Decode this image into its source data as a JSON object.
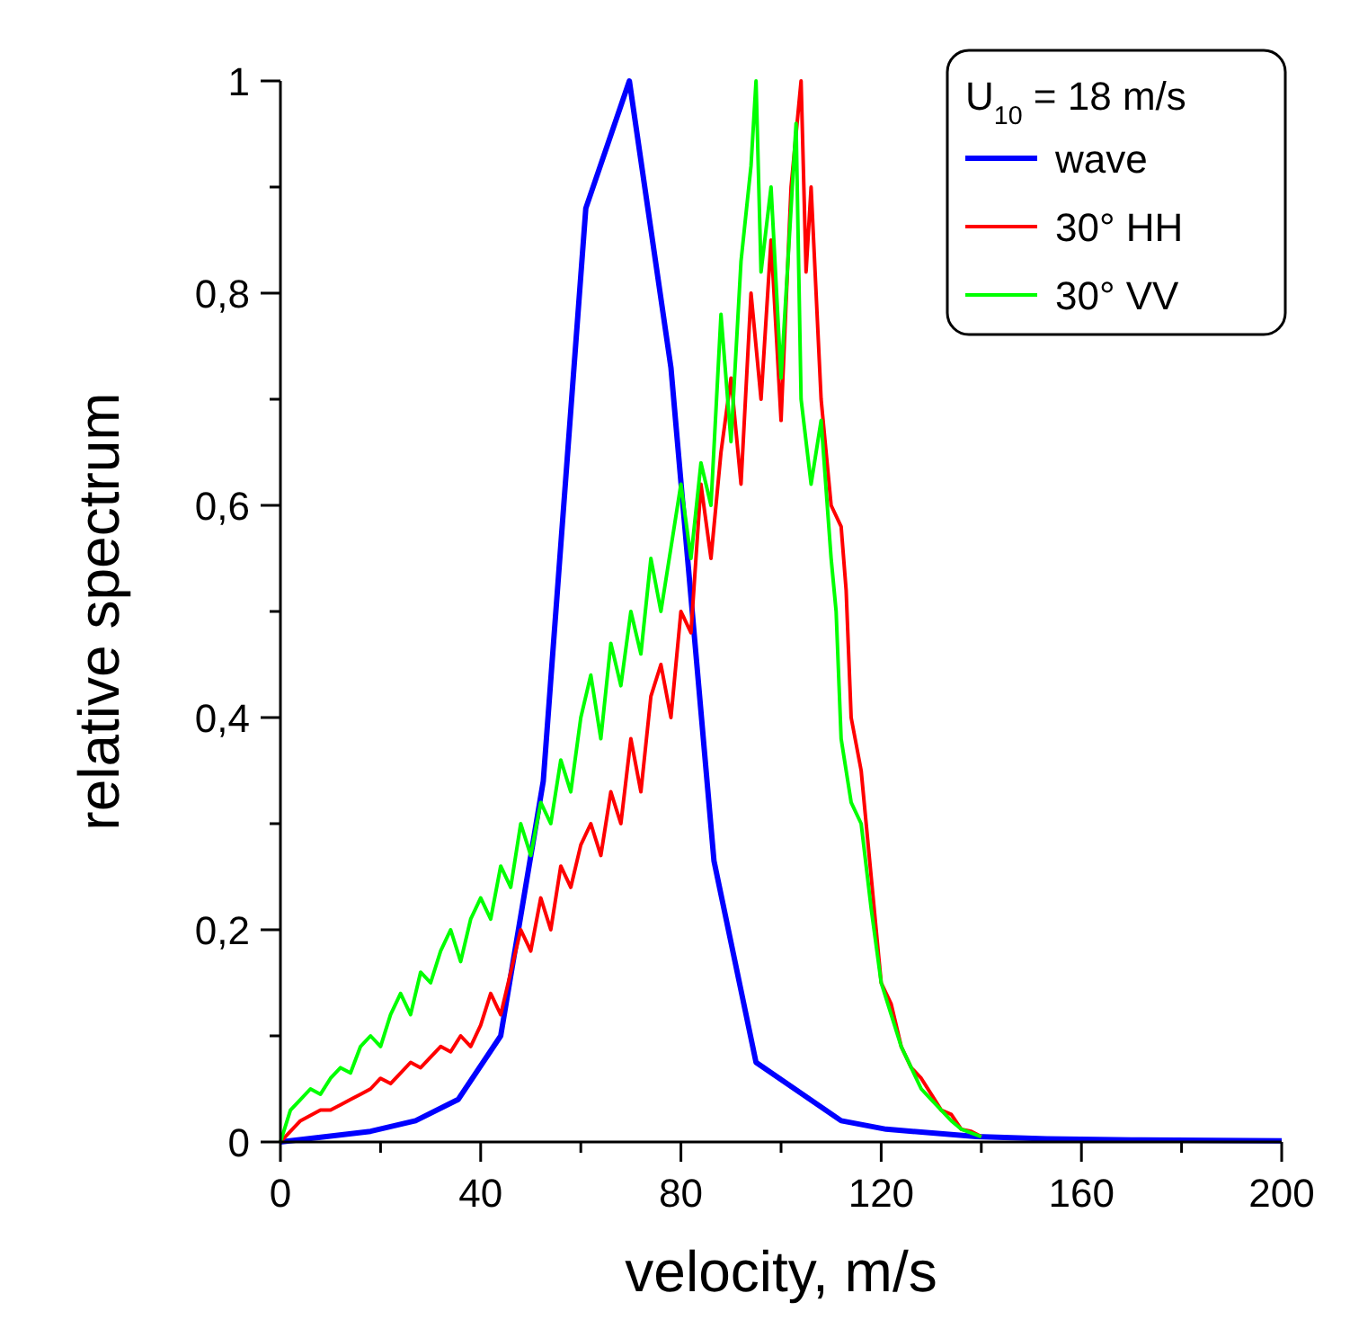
{
  "chart_data": {
    "type": "line",
    "xlabel": "velocity, m/s",
    "ylabel": "relative spectrum",
    "legend_title": "U$_{10}$ = 18 m/s",
    "legend": "top right",
    "grid": false,
    "marker": "none",
    "xlim": [
      0,
      200
    ],
    "xticks": [
      0,
      {
        "value": 20,
        "label": null
      },
      40,
      {
        "value": 60,
        "label": null
      },
      80,
      {
        "value": 100,
        "label": null
      },
      120,
      {
        "value": 140,
        "label": null
      },
      160,
      {
        "value": 180,
        "label": null
      },
      200
    ],
    "ylim": [
      0,
      1
    ],
    "yticks": [
      0,
      {
        "value": 0.1,
        "label": null
      },
      {
        "value": 0.2,
        "label": "0,2"
      },
      {
        "value": 0.3,
        "label": null
      },
      {
        "value": 0.4,
        "label": "0,4"
      },
      {
        "value": 0.5,
        "label": null
      },
      {
        "value": 0.6,
        "label": "0,6"
      },
      {
        "value": 0.7,
        "label": null
      },
      {
        "value": 0.8,
        "label": "0,8"
      },
      {
        "value": 0.9,
        "label": null
      },
      1
    ],
    "series": [
      {
        "name": "wave",
        "color": "#0000ff",
        "x": [
          0,
          18,
          27,
          35.5,
          44,
          52.5,
          61,
          69.7,
          78,
          86.6,
          95,
          112,
          121,
          139,
          153,
          170,
          200
        ],
        "values": [
          0,
          0.01,
          0.02,
          0.04,
          0.1,
          0.34,
          0.88,
          1.0,
          0.73,
          0.265,
          0.075,
          0.02,
          0.012,
          0.005,
          0.003,
          0.002,
          0.001
        ]
      },
      {
        "name": "30° HH",
        "color": "#ff0000",
        "x": [
          0,
          2,
          4,
          6,
          8,
          10,
          12,
          14,
          16,
          18,
          20,
          22,
          24,
          26,
          28,
          30,
          32,
          34,
          36,
          38,
          40,
          42,
          44,
          46,
          48,
          50,
          52,
          54,
          56,
          58,
          60,
          62,
          64,
          66,
          68,
          70,
          72,
          74,
          76,
          78,
          80,
          82,
          84,
          86,
          88,
          90,
          92,
          94,
          96,
          98,
          100,
          102,
          104,
          105,
          106,
          108,
          110,
          112,
          113,
          114,
          116,
          118,
          120,
          122,
          124,
          126,
          128,
          130,
          132,
          134,
          136,
          138,
          140
        ],
        "values": [
          0,
          0.01,
          0.02,
          0.025,
          0.03,
          0.03,
          0.035,
          0.04,
          0.045,
          0.05,
          0.06,
          0.055,
          0.065,
          0.075,
          0.07,
          0.08,
          0.09,
          0.085,
          0.1,
          0.09,
          0.11,
          0.14,
          0.12,
          0.16,
          0.2,
          0.18,
          0.23,
          0.2,
          0.26,
          0.24,
          0.28,
          0.3,
          0.27,
          0.33,
          0.3,
          0.38,
          0.33,
          0.42,
          0.45,
          0.4,
          0.5,
          0.48,
          0.62,
          0.55,
          0.65,
          0.72,
          0.62,
          0.8,
          0.7,
          0.85,
          0.68,
          0.9,
          1.0,
          0.82,
          0.9,
          0.7,
          0.6,
          0.58,
          0.52,
          0.4,
          0.35,
          0.25,
          0.15,
          0.13,
          0.09,
          0.07,
          0.06,
          0.045,
          0.03,
          0.026,
          0.012,
          0.01,
          0.005
        ]
      },
      {
        "name": "30° VV",
        "color": "#00ff00",
        "x": [
          0,
          2,
          4,
          6,
          8,
          10,
          12,
          14,
          16,
          18,
          20,
          22,
          24,
          26,
          28,
          30,
          32,
          34,
          36,
          38,
          40,
          42,
          44,
          46,
          48,
          50,
          52,
          54,
          56,
          58,
          60,
          62,
          64,
          66,
          68,
          70,
          72,
          74,
          76,
          78,
          80,
          82,
          84,
          86,
          88,
          90,
          92,
          94,
          95,
          96,
          98,
          100,
          102,
          103,
          104,
          106,
          108,
          110,
          111,
          112,
          114,
          116,
          118,
          120,
          122,
          124,
          126,
          128,
          130,
          132,
          134,
          136,
          140
        ],
        "values": [
          0,
          0.03,
          0.04,
          0.05,
          0.045,
          0.06,
          0.07,
          0.065,
          0.09,
          0.1,
          0.09,
          0.12,
          0.14,
          0.12,
          0.16,
          0.15,
          0.18,
          0.2,
          0.17,
          0.21,
          0.23,
          0.21,
          0.26,
          0.24,
          0.3,
          0.27,
          0.32,
          0.3,
          0.36,
          0.33,
          0.4,
          0.44,
          0.38,
          0.47,
          0.43,
          0.5,
          0.46,
          0.55,
          0.5,
          0.56,
          0.62,
          0.55,
          0.64,
          0.6,
          0.78,
          0.66,
          0.83,
          0.92,
          1.0,
          0.82,
          0.9,
          0.72,
          0.88,
          0.96,
          0.7,
          0.62,
          0.68,
          0.55,
          0.5,
          0.38,
          0.32,
          0.3,
          0.22,
          0.15,
          0.12,
          0.09,
          0.07,
          0.05,
          0.04,
          0.03,
          0.02,
          0.012,
          0.005
        ]
      }
    ]
  }
}
